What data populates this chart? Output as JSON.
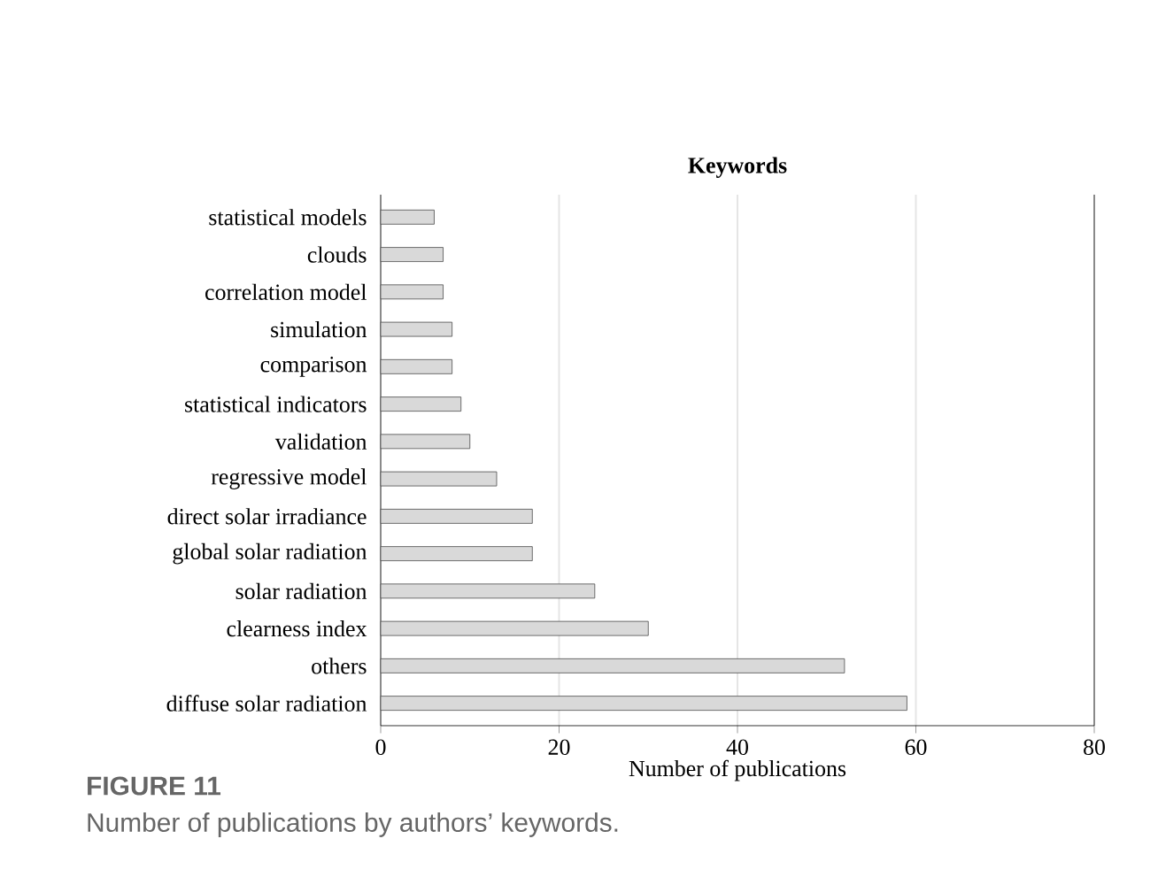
{
  "chart_data": {
    "type": "bar",
    "orientation": "horizontal",
    "title": "Keywords",
    "xlabel": "Number of publications",
    "categories": [
      "statistical models",
      "clouds",
      "correlation model",
      "simulation",
      "comparison",
      "statistical indicators",
      "validation",
      "regressive model",
      "direct solar irradiance",
      "global solar radiation",
      "solar radiation",
      "clearness index",
      "others",
      "diffuse solar radiation"
    ],
    "values": [
      6,
      7,
      7,
      8,
      8,
      9,
      10,
      13,
      17,
      17,
      24,
      30,
      52,
      59
    ],
    "color": "#d9d9d9",
    "xlim": [
      0,
      80
    ],
    "xticks": [
      0,
      20,
      40,
      60,
      80
    ],
    "grid": "x",
    "annotations": [
      "FIGURE 11",
      "Number of publications by authors’ keywords."
    ]
  }
}
